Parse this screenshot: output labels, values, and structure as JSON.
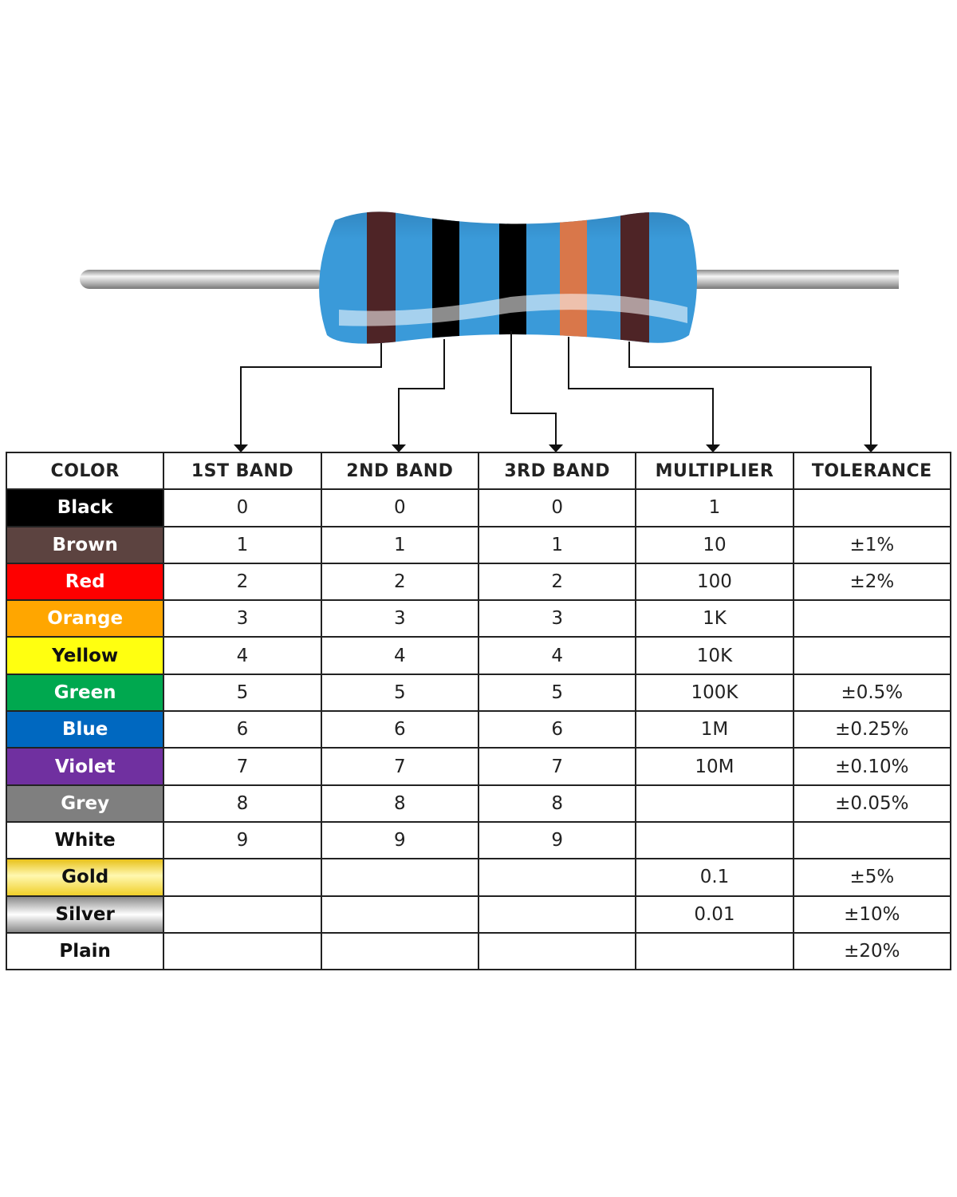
{
  "resistor": {
    "body_color": "#3a9ad9",
    "bands": [
      {
        "color": "#4e2426"
      },
      {
        "color": "#000000"
      },
      {
        "color": "#000000"
      },
      {
        "color": "#d9774a"
      },
      {
        "color": "#4e2426"
      }
    ]
  },
  "table": {
    "headers": [
      "COLOR",
      "1ST BAND",
      "2ND BAND",
      "3RD BAND",
      "MULTIPLIER",
      "TOLERANCE"
    ],
    "rows": [
      {
        "color": "Black",
        "bg": "#000000",
        "fg": "#ffffff",
        "b1": "0",
        "b2": "0",
        "b3": "0",
        "mult": "1",
        "tol": ""
      },
      {
        "color": "Brown",
        "bg": "#5c4340",
        "fg": "#ffffff",
        "b1": "1",
        "b2": "1",
        "b3": "1",
        "mult": "10",
        "tol": "±1%"
      },
      {
        "color": "Red",
        "bg": "#fe0000",
        "fg": "#ffffff",
        "b1": "2",
        "b2": "2",
        "b3": "2",
        "mult": "100",
        "tol": "±2%"
      },
      {
        "color": "Orange",
        "bg": "#ffa600",
        "fg": "#ffffff",
        "b1": "3",
        "b2": "3",
        "b3": "3",
        "mult": "1K",
        "tol": ""
      },
      {
        "color": "Yellow",
        "bg": "#ffff10",
        "fg": "#111111",
        "b1": "4",
        "b2": "4",
        "b3": "4",
        "mult": "10K",
        "tol": ""
      },
      {
        "color": "Green",
        "bg": "#00a84f",
        "fg": "#ffffff",
        "b1": "5",
        "b2": "5",
        "b3": "5",
        "mult": "100K",
        "tol": "±0.5%"
      },
      {
        "color": "Blue",
        "bg": "#0068c0",
        "fg": "#ffffff",
        "b1": "6",
        "b2": "6",
        "b3": "6",
        "mult": "1M",
        "tol": "±0.25%"
      },
      {
        "color": "Violet",
        "bg": "#7030a0",
        "fg": "#ffffff",
        "b1": "7",
        "b2": "7",
        "b3": "7",
        "mult": "10M",
        "tol": "±0.10%"
      },
      {
        "color": "Grey",
        "bg": "#7f7f7f",
        "fg": "#ffffff",
        "b1": "8",
        "b2": "8",
        "b3": "8",
        "mult": "",
        "tol": "±0.05%"
      },
      {
        "color": "White",
        "bg": "#ffffff",
        "fg": "#111111",
        "b1": "9",
        "b2": "9",
        "b3": "9",
        "mult": "",
        "tol": ""
      },
      {
        "color": "Gold",
        "bg": "linear-gradient(#e8c21a,#fff8b0 45%,#f0cf2a)",
        "fg": "#111111",
        "b1": "",
        "b2": "",
        "b3": "",
        "mult": "0.1",
        "tol": "±5%"
      },
      {
        "color": "Silver",
        "bg": "linear-gradient(#8a8a8a,#ffffff 50%,#8a8a8a)",
        "fg": "#111111",
        "b1": "",
        "b2": "",
        "b3": "",
        "mult": "0.01",
        "tol": "±10%"
      },
      {
        "color": "Plain",
        "bg": "#ffffff",
        "fg": "#111111",
        "b1": "",
        "b2": "",
        "b3": "",
        "mult": "",
        "tol": "±20%"
      }
    ]
  }
}
